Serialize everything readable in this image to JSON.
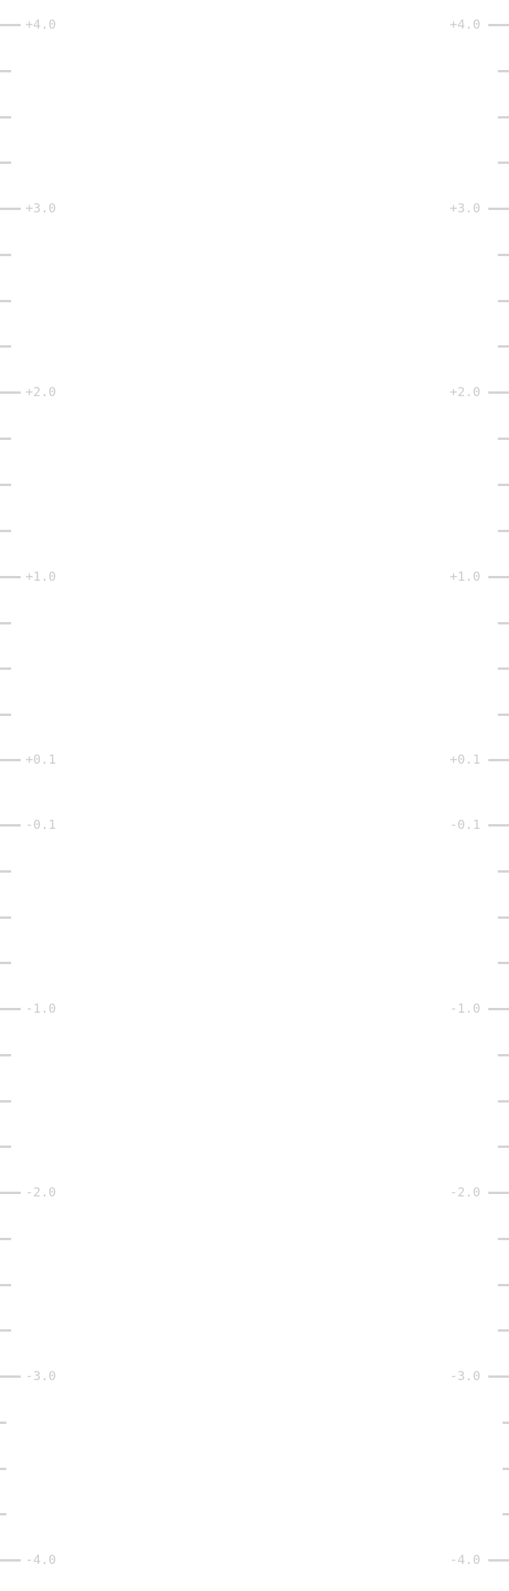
{
  "ruler": {
    "unit_labels": [
      "+4.0",
      "+3.0",
      "+2.0",
      "+1.0",
      "+0.1",
      "-0.1",
      "-1.0",
      "-2.0",
      "-3.0",
      "-4.0"
    ],
    "tick_color": "#d4d4d4",
    "label_color": "#cccccc",
    "sides": [
      "left",
      "right"
    ]
  }
}
